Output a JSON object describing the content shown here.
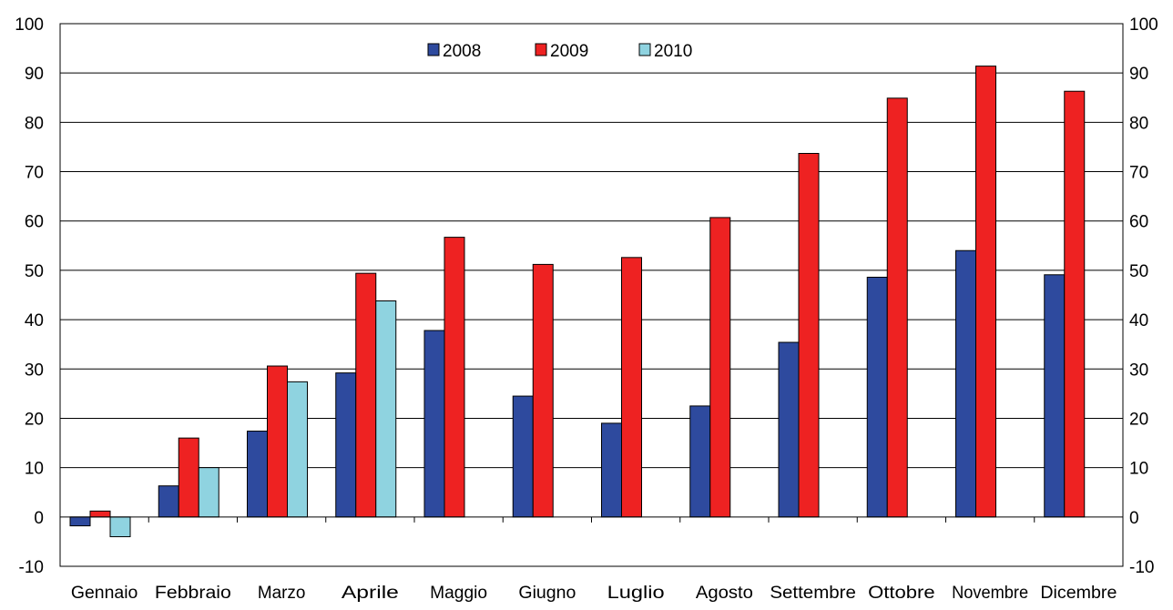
{
  "chart_data": {
    "type": "bar",
    "title": "",
    "xlabel": "",
    "ylabel": "",
    "categories": [
      "Gennaio",
      "Febbraio",
      "Marzo",
      "Aprile",
      "Maggio",
      "Giugno",
      "Luglio",
      "Agosto",
      "Settembre",
      "Ottobre",
      "Novembre",
      "Dicembre"
    ],
    "series": [
      {
        "name": "2008",
        "color": "#2e4a9e",
        "values": [
          -1.8,
          6.3,
          17.4,
          29.2,
          37.8,
          24.5,
          19.0,
          22.5,
          35.4,
          48.6,
          54.0,
          49.1
        ]
      },
      {
        "name": "2009",
        "color": "#ee2222",
        "values": [
          1.2,
          16.0,
          30.6,
          49.4,
          56.7,
          51.2,
          52.6,
          60.7,
          73.7,
          84.9,
          91.4,
          86.3
        ]
      },
      {
        "name": "2010",
        "color": "#8fd3e0",
        "values": [
          -4.0,
          10.0,
          27.4,
          43.8,
          null,
          null,
          null,
          null,
          null,
          null,
          null,
          null
        ]
      }
    ],
    "ylim": [
      -10,
      100
    ],
    "yticks": [
      "-10",
      "0",
      "10",
      "20",
      "30",
      "40",
      "50",
      "60",
      "70",
      "80",
      "90",
      "100"
    ],
    "secondary_yticks": [
      "-10",
      "0",
      "10",
      "20",
      "30",
      "40",
      "50",
      "60",
      "70",
      "80",
      "90",
      "100"
    ],
    "grid": true,
    "legend_position": "top-center"
  }
}
